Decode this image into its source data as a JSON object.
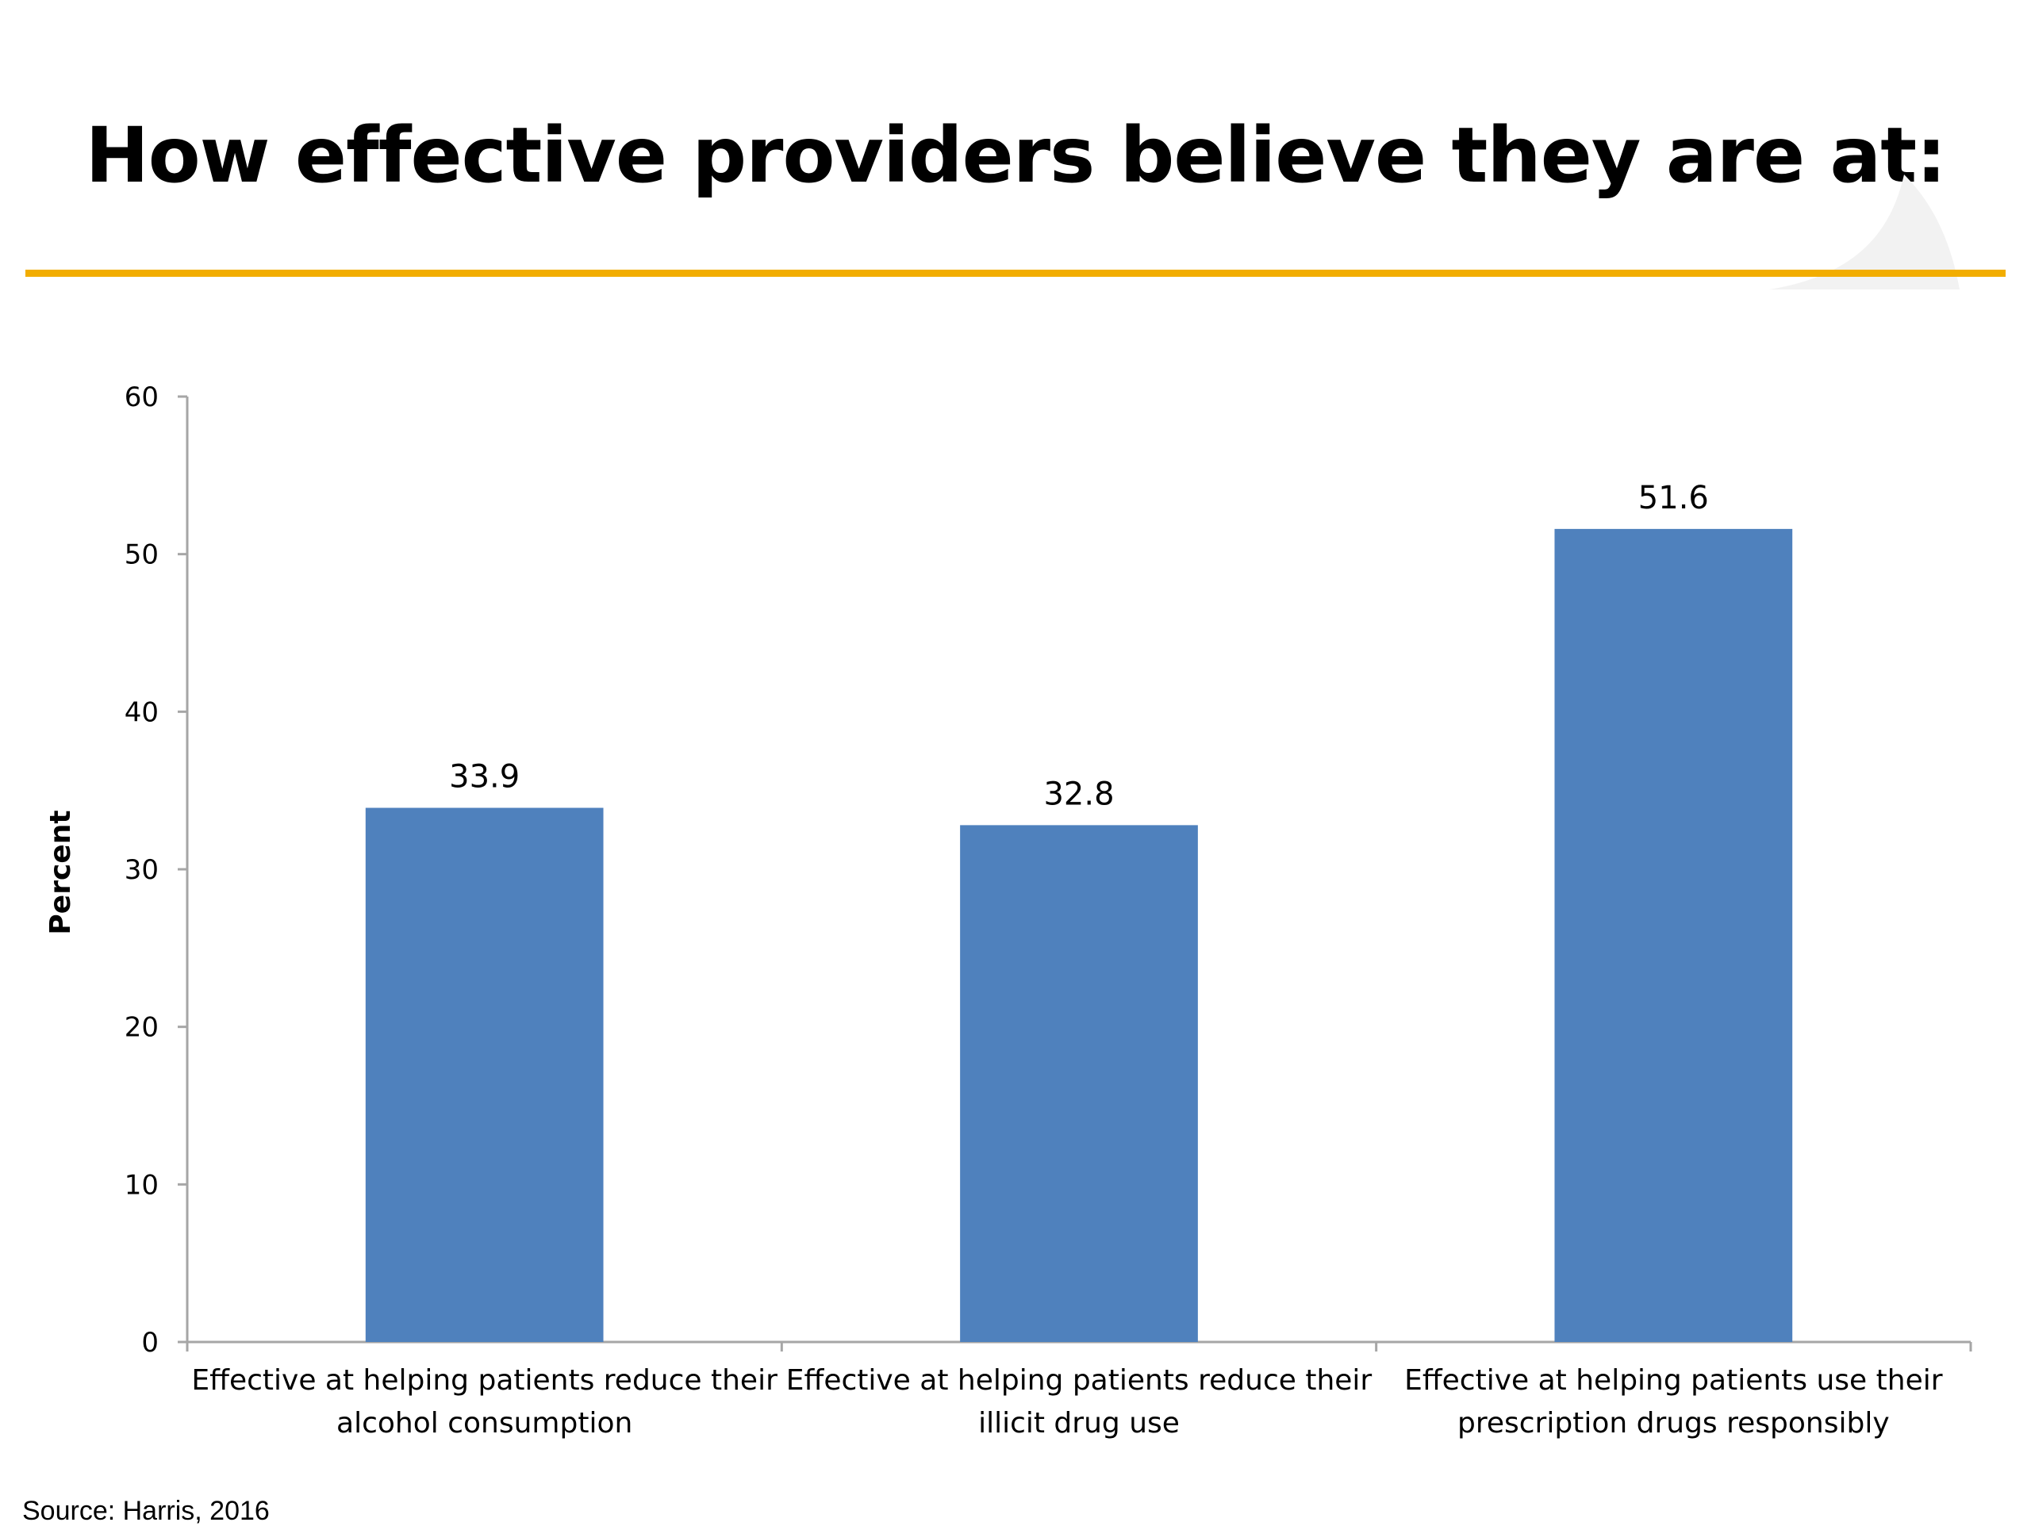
{
  "slide": {
    "title": "How effective providers believe they are at:",
    "source": "Source: Harris, 2016"
  },
  "colors": {
    "accent_rule": "#F2AD00",
    "bar": "#4F81BD",
    "axis": "#A6A6A6"
  },
  "chart_data": {
    "type": "bar",
    "title": "",
    "xlabel": "",
    "ylabel": "Percent",
    "ylim": [
      0,
      60
    ],
    "yticks": [
      0,
      10,
      20,
      30,
      40,
      50,
      60
    ],
    "categories": [
      [
        "Effective at helping patients reduce their",
        "alcohol consumption"
      ],
      [
        "Effective at helping patients reduce their",
        "illicit drug use"
      ],
      [
        "Effective at helping patients use their",
        "prescription drugs responsibly"
      ]
    ],
    "values": [
      33.9,
      32.8,
      51.6
    ],
    "data_labels": [
      "33.9",
      "32.8",
      "51.6"
    ],
    "grid": false,
    "legend": "none"
  }
}
